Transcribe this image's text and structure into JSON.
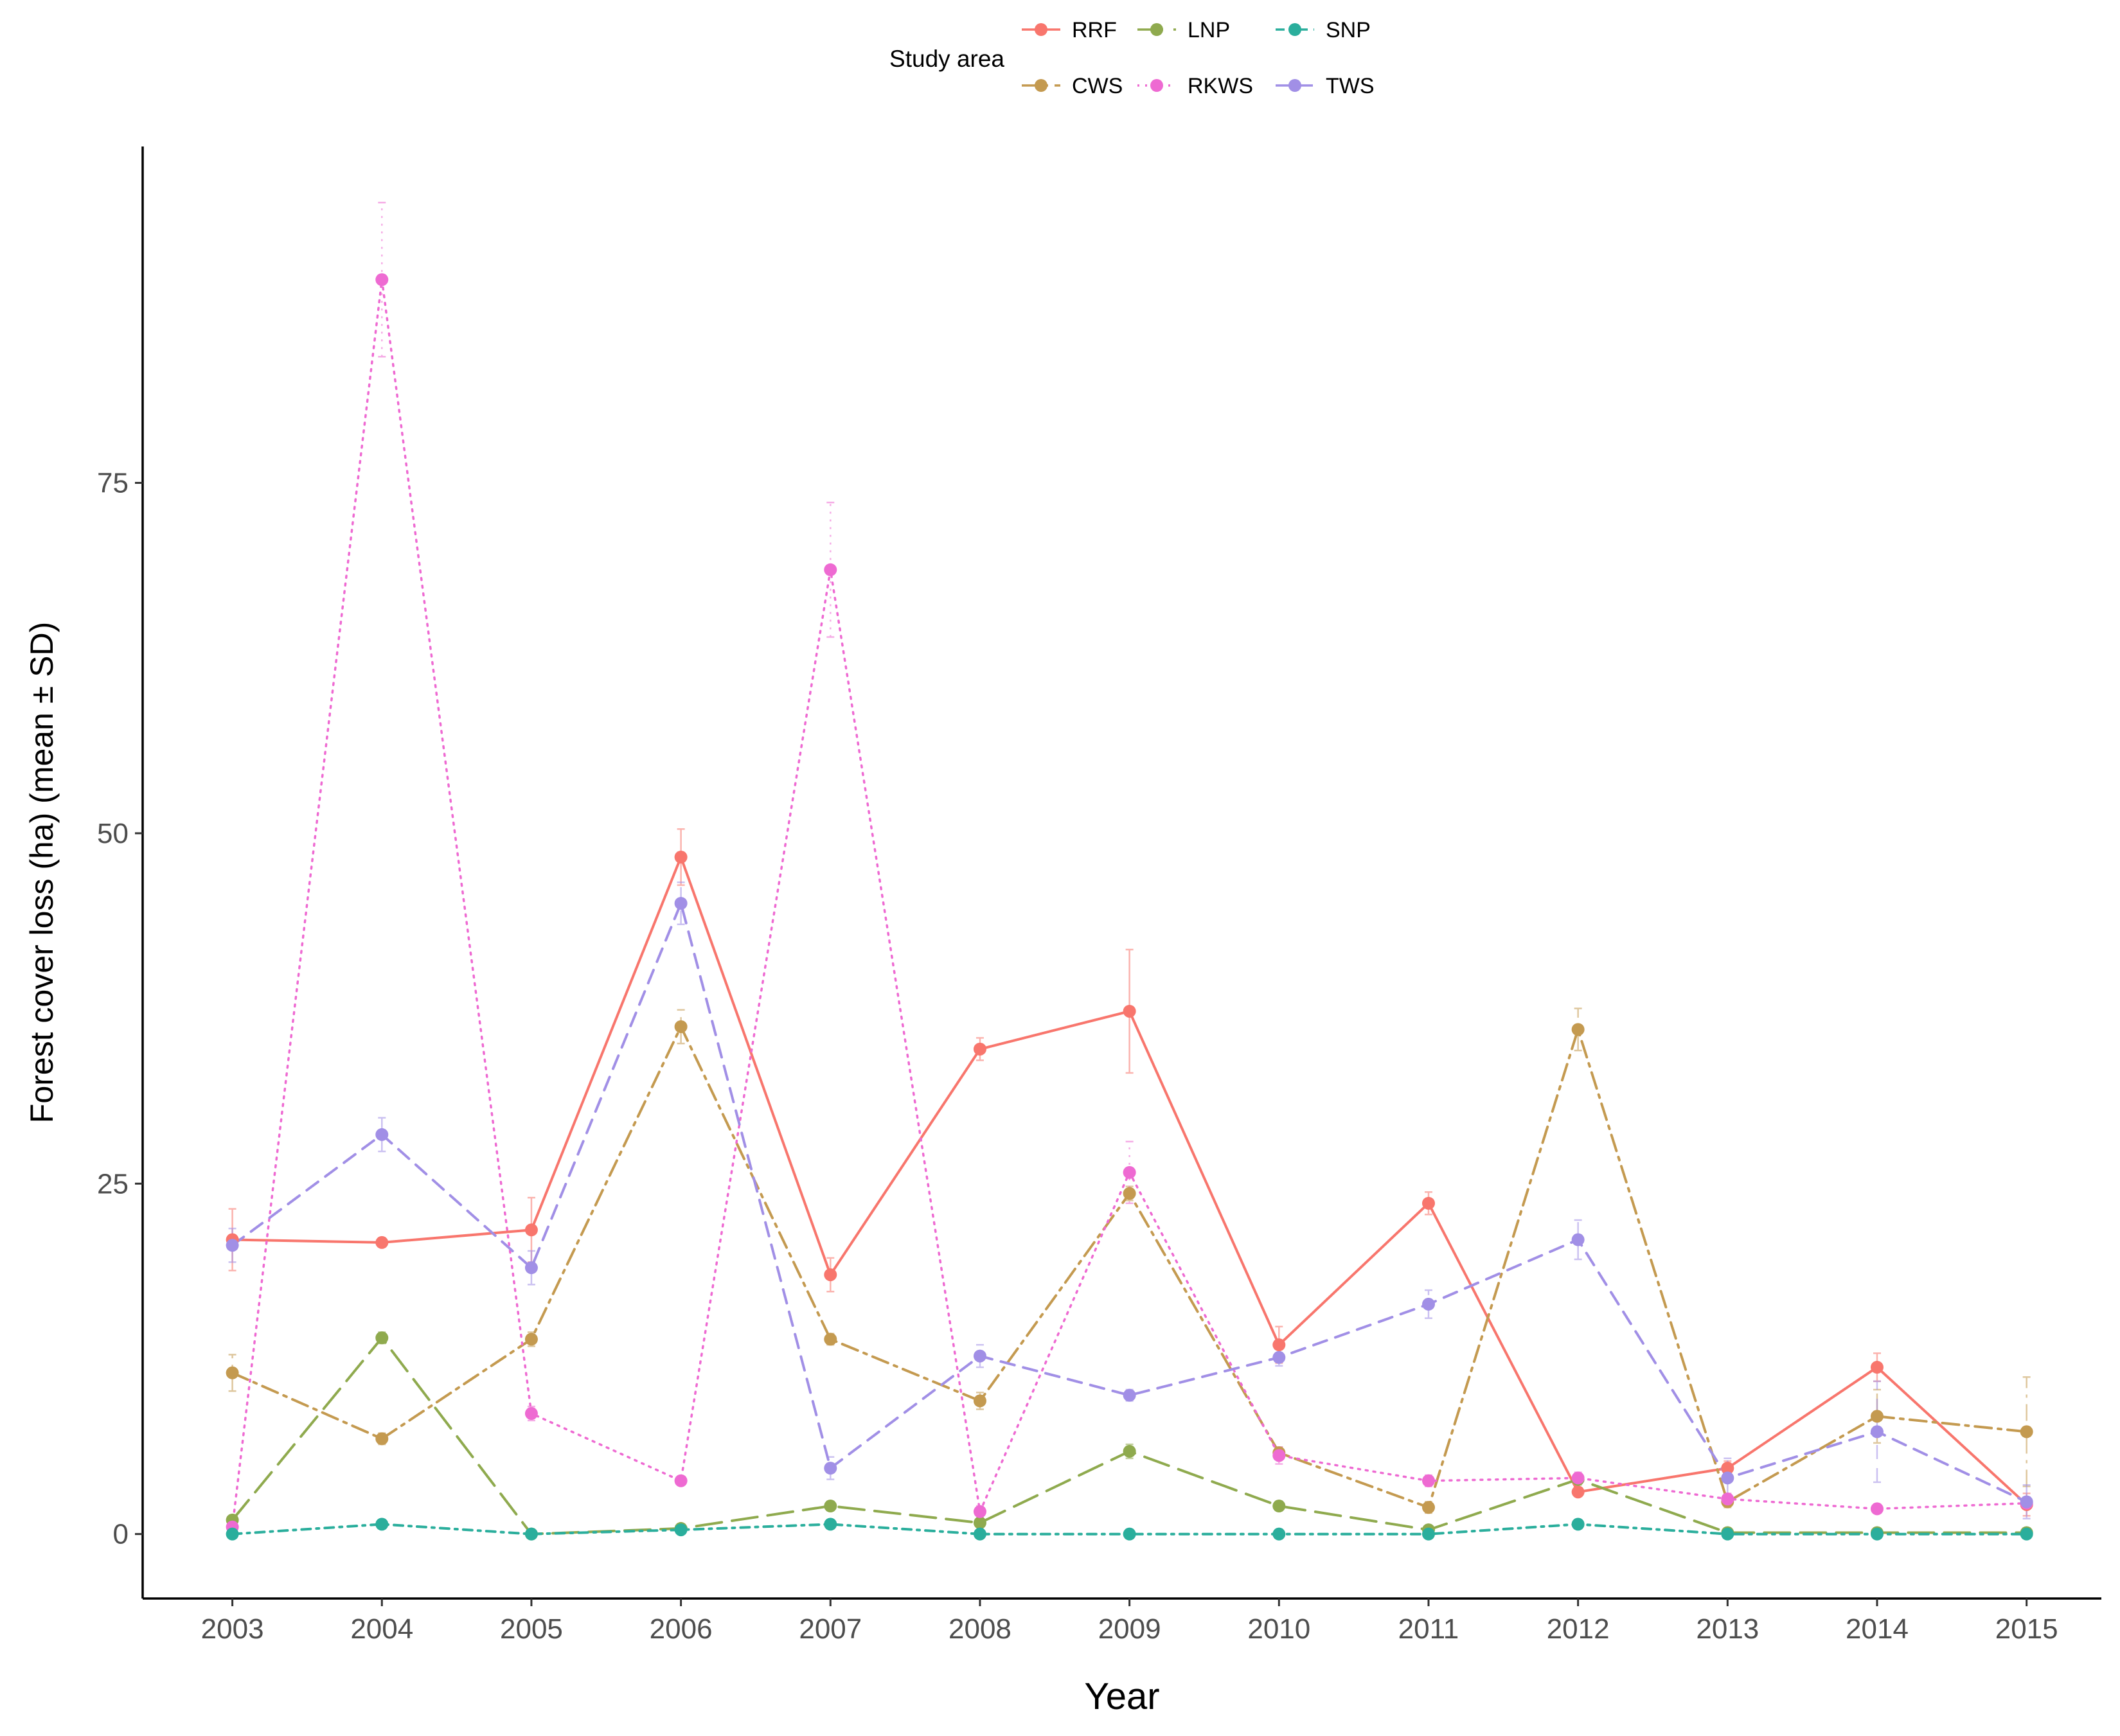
{
  "chart_data": {
    "type": "line",
    "xlabel": "Year",
    "ylabel": "Forest cover loss (ha) (mean ± SD)",
    "x": [
      2003,
      2004,
      2005,
      2006,
      2007,
      2008,
      2009,
      2010,
      2011,
      2012,
      2013,
      2014,
      2015
    ],
    "xlim": [
      2002.4,
      2015.5
    ],
    "ylim": [
      -4.6,
      99
    ],
    "yticks": [
      0,
      25,
      50,
      75
    ],
    "grid": false,
    "legend": {
      "title": "Study area",
      "position": "top"
    },
    "series": [
      {
        "name": "RRF",
        "color": "#F8766D",
        "dash": "solid",
        "values": [
          21.0,
          20.8,
          21.7,
          48.3,
          18.5,
          34.6,
          37.3,
          13.5,
          23.6,
          3.0,
          4.7,
          11.9,
          2.1
        ],
        "sd": [
          2.2,
          0.3,
          2.3,
          2.0,
          1.2,
          0.8,
          4.4,
          1.3,
          0.8,
          0.3,
          0.5,
          1.0,
          0.8
        ]
      },
      {
        "name": "CWS",
        "color": "#C49A50",
        "dash": "dashdot",
        "values": [
          11.5,
          6.8,
          13.9,
          36.2,
          13.9,
          9.5,
          24.3,
          5.8,
          1.9,
          36.0,
          2.3,
          8.4,
          7.3
        ],
        "sd": [
          1.3,
          0.4,
          0.5,
          1.2,
          0.4,
          0.6,
          0.5,
          0.4,
          0.4,
          1.5,
          0.4,
          1.9,
          3.9
        ]
      },
      {
        "name": "LNP",
        "color": "#8FAA4E",
        "dash": "longdash",
        "values": [
          1.0,
          14.0,
          0.0,
          0.4,
          2.0,
          0.8,
          5.9,
          2.0,
          0.3,
          3.9,
          0.1,
          0.1,
          0.1
        ],
        "sd": [
          0.3,
          0.4,
          0.1,
          0.2,
          0.3,
          0.2,
          0.5,
          0.3,
          0.2,
          0.4,
          0.1,
          0.1,
          0.1
        ]
      },
      {
        "name": "RKWS",
        "color": "#EE6AD2",
        "dash": "dotted",
        "values": [
          0.5,
          89.5,
          8.6,
          3.8,
          68.8,
          1.6,
          25.8,
          5.6,
          3.8,
          4.0,
          2.5,
          1.8,
          2.2
        ],
        "sd": [
          0.2,
          5.5,
          0.5,
          0.3,
          4.8,
          0.4,
          2.2,
          0.6,
          0.4,
          0.4,
          0.4,
          0.3,
          0.4
        ]
      },
      {
        "name": "SNP",
        "color": "#2AAE9C",
        "dash": "dashdot-fine",
        "values": [
          0.0,
          0.7,
          0.0,
          0.3,
          0.7,
          0.0,
          0.0,
          0.0,
          0.0,
          0.7,
          0.0,
          0.0,
          0.0
        ],
        "sd": [
          0.1,
          0.1,
          0.0,
          0.1,
          0.1,
          0.0,
          0.0,
          0.0,
          0.0,
          0.1,
          0.0,
          0.0,
          0.0
        ]
      },
      {
        "name": "TWS",
        "color": "#A18FE6",
        "dash": "dashed",
        "values": [
          20.6,
          28.5,
          19.0,
          45.0,
          4.7,
          12.7,
          9.9,
          12.6,
          16.4,
          21.0,
          4.0,
          7.3,
          2.3
        ],
        "sd": [
          1.2,
          1.2,
          1.2,
          1.5,
          0.8,
          0.8,
          0.4,
          0.6,
          1.0,
          1.4,
          1.4,
          3.6,
          1.2
        ]
      }
    ]
  }
}
